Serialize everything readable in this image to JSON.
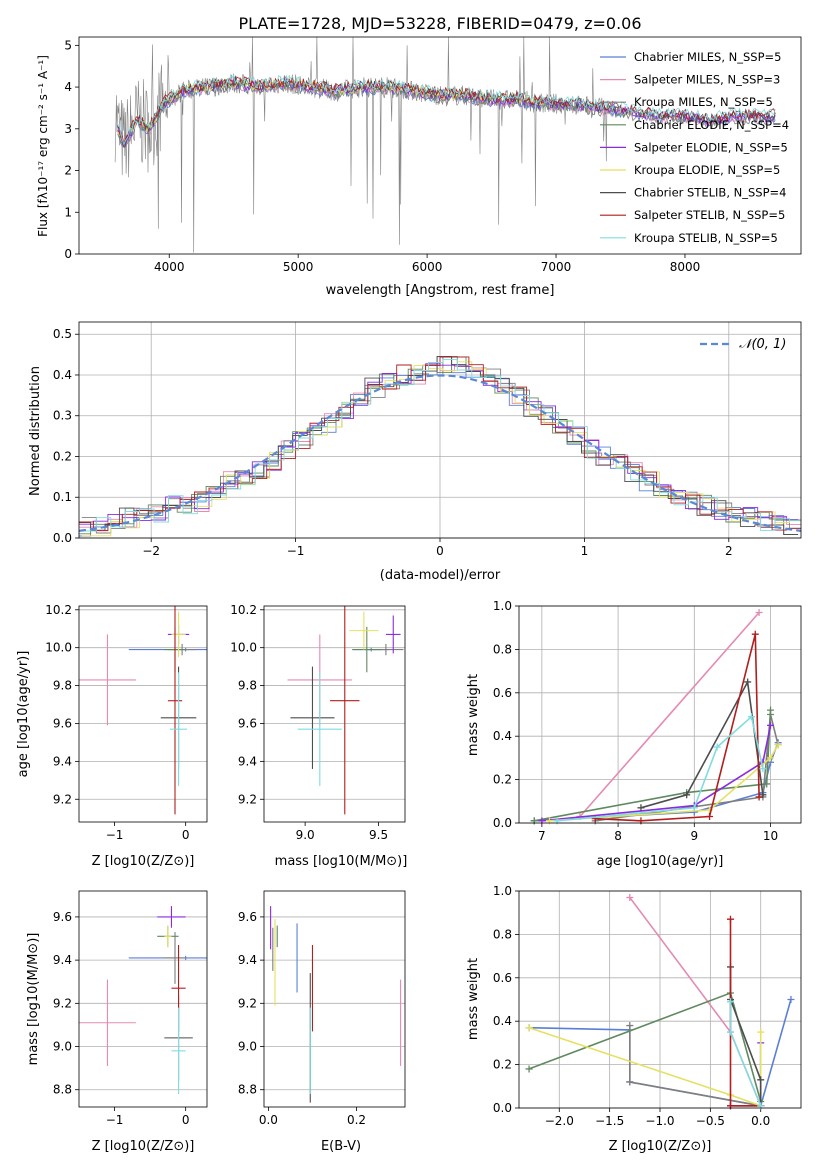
{
  "colors": [
    "#5b7fd6",
    "#e58ab3",
    "#7f7f7f",
    "#5f8a5f",
    "#8a2be2",
    "#e6e061",
    "#4d4d4d",
    "#b21e1e",
    "#7fdce0"
  ],
  "spectrum": {
    "title": "PLATE=1728, MJD=53228, FIBERID=0479, z=0.06",
    "xlabel": "wavelength [Angstrom, rest frame]",
    "ylabel": "Flux [fλ10⁻¹⁷ erg cm⁻² s⁻¹ A⁻¹]",
    "xticks": [
      "4000",
      "5000",
      "6000",
      "7000",
      "8000"
    ],
    "yticks": [
      "0",
      "1",
      "2",
      "3",
      "4",
      "5"
    ],
    "legend": [
      "Chabrier MILES, N_SSP=5",
      "Salpeter MILES, N_SSP=3",
      "Kroupa MILES, N_SSP=5",
      "Chabrier ELODIE, N_SSP=4",
      "Salpeter ELODIE, N_SSP=5",
      "Kroupa ELODIE, N_SSP=5",
      "Chabrier STELIB, N_SSP=4",
      "Salpeter STELIB, N_SSP=5",
      "Kroupa STELIB, N_SSP=5"
    ]
  },
  "residuals": {
    "xlabel": "(data-model)/error",
    "ylabel": "Normed distribution",
    "xticks": [
      "−2",
      "−1",
      "0",
      "1",
      "2"
    ],
    "yticks": [
      "0.0",
      "0.1",
      "0.2",
      "0.3",
      "0.4",
      "0.5"
    ],
    "legend": "𝒩(0, 1)"
  },
  "panel_age_z": {
    "xlabel": "Z [log10(Z/Z⊙)]",
    "ylabel": "age  [log10(age/yr)]",
    "xticks": [
      "−1",
      "0"
    ],
    "yticks": [
      "9.2",
      "9.4",
      "9.6",
      "9.8",
      "10.0",
      "10.2"
    ]
  },
  "panel_age_mass": {
    "xlabel": "mass [log10(M/M⊙)]",
    "xticks": [
      "9.0",
      "9.5"
    ],
    "yticks": [
      "9.2",
      "9.4",
      "9.6",
      "9.8",
      "10.0",
      "10.2"
    ]
  },
  "panel_weight_age": {
    "xlabel": "age  [log10(age/yr)]",
    "ylabel": "mass weight",
    "xticks": [
      "7",
      "8",
      "9",
      "10"
    ],
    "yticks": [
      "0.0",
      "0.2",
      "0.4",
      "0.6",
      "0.8",
      "1.0"
    ]
  },
  "panel_mass_z": {
    "xlabel": "Z [log10(Z/Z⊙)]",
    "ylabel": "mass [log10(M/M⊙)]",
    "xticks": [
      "−1",
      "0"
    ],
    "yticks": [
      "8.8",
      "9.0",
      "9.2",
      "9.4",
      "9.6"
    ]
  },
  "panel_mass_ebv": {
    "xlabel": "E(B-V)",
    "xticks": [
      "0.0",
      "0.2"
    ],
    "yticks": [
      "8.8",
      "9.0",
      "9.2",
      "9.4",
      "9.6"
    ]
  },
  "panel_weight_z": {
    "xlabel": "Z [log10(Z/Z⊙)]",
    "ylabel": "mass weight",
    "xticks": [
      "−2.0",
      "−1.5",
      "−1.0",
      "−0.5",
      "0.0"
    ],
    "yticks": [
      "0.0",
      "0.2",
      "0.4",
      "0.6",
      "0.8",
      "1.0"
    ]
  },
  "chart_data": [
    {
      "type": "line",
      "xlim": [
        3300,
        8900
      ],
      "ylim": [
        0,
        5.2
      ],
      "grid": false,
      "legend_position": "right",
      "series_shape": [
        [
          3600,
          3.0
        ],
        [
          3650,
          2.6
        ],
        [
          3750,
          3.2
        ],
        [
          3850,
          3.0
        ],
        [
          3950,
          3.6
        ],
        [
          4100,
          3.9
        ],
        [
          4300,
          4.0
        ],
        [
          4500,
          4.1
        ],
        [
          4700,
          4.0
        ],
        [
          4900,
          4.1
        ],
        [
          5100,
          4.0
        ],
        [
          5300,
          3.9
        ],
        [
          5500,
          4.0
        ],
        [
          5700,
          4.0
        ],
        [
          5900,
          3.9
        ],
        [
          6100,
          3.8
        ],
        [
          6300,
          3.8
        ],
        [
          6500,
          3.7
        ],
        [
          6700,
          3.7
        ],
        [
          6900,
          3.6
        ],
        [
          7100,
          3.6
        ],
        [
          7300,
          3.5
        ],
        [
          7400,
          3.5
        ],
        [
          7600,
          3.4
        ],
        [
          7800,
          3.3
        ],
        [
          8000,
          3.3
        ],
        [
          8200,
          3.2
        ],
        [
          8400,
          3.3
        ],
        [
          8650,
          3.3
        ]
      ]
    },
    {
      "type": "bar",
      "xlim": [
        -2.5,
        2.5
      ],
      "ylim": [
        0,
        0.53
      ],
      "grid": true,
      "legend_position": "top-right",
      "gaussian": {
        "mu": 0,
        "sigma": 1
      },
      "hist_centers": [
        -2.45,
        -2.35,
        -2.25,
        -2.15,
        -2.05,
        -1.95,
        -1.85,
        -1.75,
        -1.65,
        -1.55,
        -1.45,
        -1.35,
        -1.25,
        -1.15,
        -1.05,
        -0.95,
        -0.85,
        -0.75,
        -0.65,
        -0.55,
        -0.45,
        -0.35,
        -0.25,
        -0.15,
        -0.05,
        0.05,
        0.15,
        0.25,
        0.35,
        0.45,
        0.55,
        0.65,
        0.75,
        0.85,
        0.95,
        1.05,
        1.15,
        1.25,
        1.35,
        1.45,
        1.55,
        1.65,
        1.75,
        1.85,
        1.95,
        2.05,
        2.15,
        2.25,
        2.35,
        2.45
      ],
      "hist_values": [
        0.03,
        0.03,
        0.04,
        0.05,
        0.05,
        0.06,
        0.08,
        0.08,
        0.09,
        0.11,
        0.14,
        0.15,
        0.17,
        0.19,
        0.22,
        0.24,
        0.26,
        0.28,
        0.31,
        0.34,
        0.37,
        0.39,
        0.4,
        0.4,
        0.41,
        0.43,
        0.43,
        0.41,
        0.39,
        0.38,
        0.35,
        0.32,
        0.3,
        0.27,
        0.25,
        0.22,
        0.2,
        0.18,
        0.16,
        0.14,
        0.12,
        0.1,
        0.09,
        0.08,
        0.07,
        0.06,
        0.05,
        0.04,
        0.03,
        0.03
      ]
    },
    {
      "type": "scatter",
      "xlim": [
        -1.5,
        0.3
      ],
      "ylim": [
        9.08,
        10.22
      ],
      "points": [
        {
          "x": 0.0,
          "y": 9.99,
          "ex": 0.8,
          "ey": 0.01
        },
        {
          "x": -1.1,
          "y": 9.83,
          "ex": 0.4,
          "ey": 0.24
        },
        {
          "x": -0.05,
          "y": 9.99,
          "ex": 0.2,
          "ey": 0.03
        },
        {
          "x": -0.15,
          "y": 9.99,
          "ex": 0.15,
          "ey": 0.12
        },
        {
          "x": -0.1,
          "y": 10.07,
          "ex": 0.15,
          "ey": 0.05
        },
        {
          "x": -0.1,
          "y": 10.07,
          "ex": 0.1,
          "ey": 0.12
        },
        {
          "x": -0.1,
          "y": 9.63,
          "ex": 0.25,
          "ey": 0.27
        },
        {
          "x": -0.15,
          "y": 9.72,
          "ex": 0.1,
          "ey": 0.6
        },
        {
          "x": -0.1,
          "y": 9.57,
          "ex": 0.12,
          "ey": 0.3
        }
      ]
    },
    {
      "type": "scatter",
      "xlim": [
        8.72,
        9.68
      ],
      "ylim": [
        9.08,
        10.22
      ],
      "points": [
        {
          "x": 9.45,
          "y": 9.99,
          "ex": 0.12,
          "ey": 0.01
        },
        {
          "x": 9.1,
          "y": 9.83,
          "ex": 0.22,
          "ey": 0.24
        },
        {
          "x": 9.55,
          "y": 9.99,
          "ex": 0.12,
          "ey": 0.03
        },
        {
          "x": 9.42,
          "y": 9.99,
          "ex": 0.1,
          "ey": 0.12
        },
        {
          "x": 9.6,
          "y": 10.07,
          "ex": 0.05,
          "ey": 0.1
        },
        {
          "x": 9.4,
          "y": 10.09,
          "ex": 0.1,
          "ey": 0.1
        },
        {
          "x": 9.05,
          "y": 9.63,
          "ex": 0.15,
          "ey": 0.27
        },
        {
          "x": 9.27,
          "y": 9.72,
          "ex": 0.1,
          "ey": 0.6
        },
        {
          "x": 9.1,
          "y": 9.57,
          "ex": 0.15,
          "ey": 0.3
        }
      ]
    },
    {
      "type": "line",
      "xlim": [
        6.7,
        10.4
      ],
      "ylim": [
        0,
        1.0
      ],
      "grid": true,
      "series": [
        {
          "x": [
            6.9,
            9.0,
            9.9,
            10.0,
            10.1
          ],
          "y": [
            0.01,
            0.05,
            0.14,
            0.28,
            0.37
          ]
        },
        {
          "x": [
            7.5,
            9.85
          ],
          "y": [
            0.03,
            0.97
          ]
        },
        {
          "x": [
            7.7,
            9.9,
            10.0,
            10.1
          ],
          "y": [
            0.01,
            0.12,
            0.5,
            0.36
          ]
        },
        {
          "x": [
            6.9,
            8.9,
            9.95,
            10.0
          ],
          "y": [
            0.01,
            0.14,
            0.18,
            0.52
          ]
        },
        {
          "x": [
            7.0,
            9.0,
            9.9,
            10.0
          ],
          "y": [
            0.01,
            0.08,
            0.28,
            0.45
          ]
        },
        {
          "x": [
            7.1,
            9.2,
            10.0,
            10.1
          ],
          "y": [
            0.01,
            0.06,
            0.3,
            0.36
          ]
        },
        {
          "x": [
            8.3,
            8.9,
            9.7,
            9.9
          ],
          "y": [
            0.07,
            0.13,
            0.65,
            0.13
          ]
        },
        {
          "x": [
            7.7,
            8.3,
            9.2,
            9.8,
            9.85
          ],
          "y": [
            0.02,
            0.01,
            0.03,
            0.87,
            0.12
          ]
        },
        {
          "x": [
            7.2,
            9.0,
            9.3,
            9.75,
            9.9
          ],
          "y": [
            0.01,
            0.07,
            0.35,
            0.49,
            0.25
          ]
        }
      ]
    },
    {
      "type": "scatter",
      "xlim": [
        -1.5,
        0.3
      ],
      "ylim": [
        8.72,
        9.72
      ],
      "points": [
        {
          "x": 0.0,
          "y": 9.41,
          "ex": 0.8,
          "ey": 0.01
        },
        {
          "x": -1.1,
          "y": 9.11,
          "ex": 0.4,
          "ey": 0.2
        },
        {
          "x": -0.15,
          "y": 9.41,
          "ex": 0.15,
          "ey": 0.12
        },
        {
          "x": -0.25,
          "y": 9.51,
          "ex": 0.15,
          "ey": 0.05
        },
        {
          "x": -0.2,
          "y": 9.6,
          "ex": 0.2,
          "ey": 0.05
        },
        {
          "x": -0.25,
          "y": 9.51,
          "ex": 0.05,
          "ey": 0.05
        },
        {
          "x": -0.1,
          "y": 9.04,
          "ex": 0.2,
          "ey": 0.2
        },
        {
          "x": -0.1,
          "y": 9.27,
          "ex": 0.1,
          "ey": 0.2
        },
        {
          "x": -0.1,
          "y": 8.98,
          "ex": 0.1,
          "ey": 0.2
        }
      ]
    },
    {
      "type": "scatter",
      "xlim": [
        -0.01,
        0.31
      ],
      "ylim": [
        8.72,
        9.72
      ],
      "points": [
        {
          "x": 0.065,
          "y": 9.41,
          "ex": 0,
          "ey": 0.16
        },
        {
          "x": 0.3,
          "y": 9.11,
          "ex": 0,
          "ey": 0.2
        },
        {
          "x": 0.01,
          "y": 9.45,
          "ex": 0,
          "ey": 0.1
        },
        {
          "x": 0.02,
          "y": 9.51,
          "ex": 0,
          "ey": 0.05
        },
        {
          "x": 0.005,
          "y": 9.55,
          "ex": 0,
          "ey": 0.1
        },
        {
          "x": 0.015,
          "y": 9.39,
          "ex": 0,
          "ey": 0.2
        },
        {
          "x": 0.095,
          "y": 9.04,
          "ex": 0,
          "ey": 0.3
        },
        {
          "x": 0.1,
          "y": 9.27,
          "ex": 0,
          "ey": 0.2
        },
        {
          "x": 0.095,
          "y": 8.98,
          "ex": 0,
          "ey": 0.2
        }
      ]
    },
    {
      "type": "line",
      "xlim": [
        -2.4,
        0.4
      ],
      "ylim": [
        0,
        1.0
      ],
      "grid": true,
      "series": [
        {
          "x": [
            -2.3,
            -1.3,
            -1.3,
            0.0,
            0.3
          ],
          "y": [
            0.37,
            0.36,
            0.12,
            0.01,
            0.5
          ]
        },
        {
          "x": [
            -1.3,
            -0.3,
            0.0
          ],
          "y": [
            0.97,
            0.35,
            0.01
          ]
        },
        {
          "x": [
            -1.3,
            -1.3,
            0.0
          ],
          "y": [
            0.38,
            0.12,
            0.01
          ]
        },
        {
          "x": [
            -2.3,
            -0.3,
            0.0
          ],
          "y": [
            0.18,
            0.53,
            0.03
          ]
        },
        {
          "x": [
            -0.3,
            0.0,
            0.0
          ],
          "y": [
            0.01,
            0.01,
            0.3
          ]
        },
        {
          "x": [
            -2.3,
            -0.3,
            0.0,
            0.0
          ],
          "y": [
            0.37,
            0.06,
            0.01,
            0.35
          ]
        },
        {
          "x": [
            -0.3,
            -0.3,
            0.0,
            0.0
          ],
          "y": [
            0.65,
            0.5,
            0.13,
            0.01
          ]
        },
        {
          "x": [
            -0.3,
            -0.3,
            0.0
          ],
          "y": [
            0.87,
            0.01,
            0.01
          ]
        },
        {
          "x": [
            -0.3,
            -0.3,
            0.0
          ],
          "y": [
            0.49,
            0.35,
            0.01
          ]
        }
      ]
    }
  ]
}
